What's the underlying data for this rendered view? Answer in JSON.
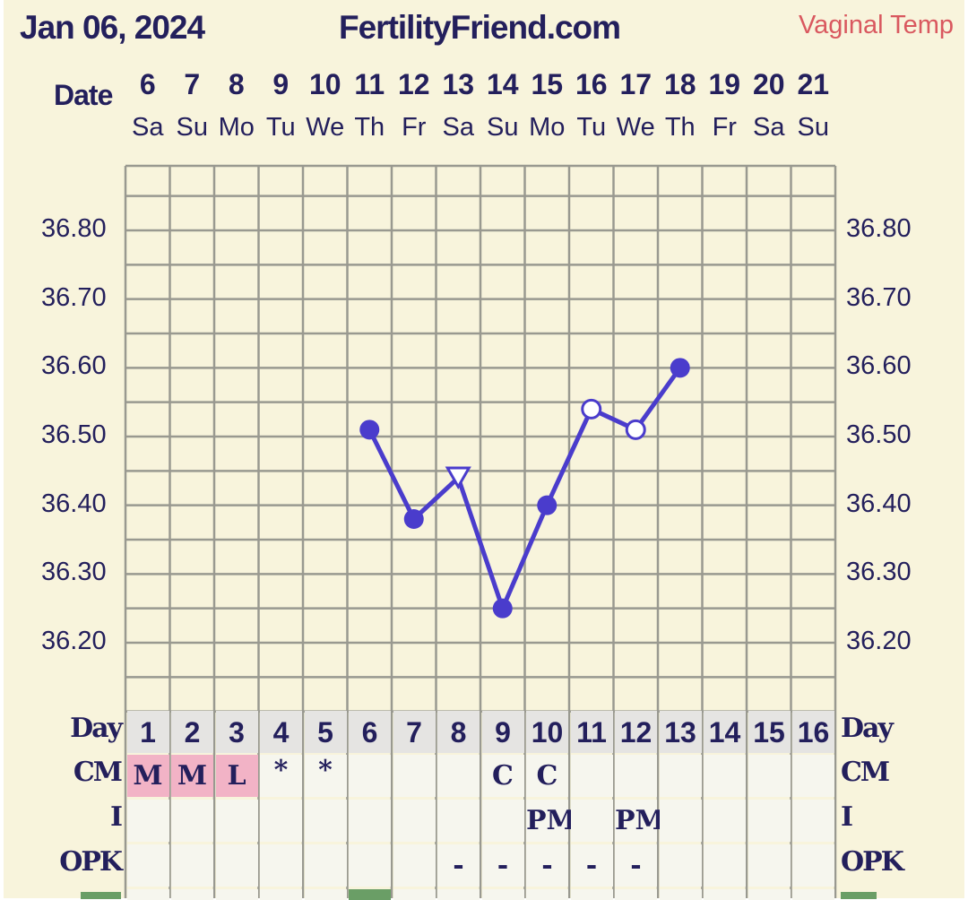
{
  "header": {
    "date": "Jan 06, 2024",
    "site": "FertilityFriend.com",
    "temp_type": "Vaginal Temp",
    "date_label": "Date"
  },
  "chart_data": {
    "type": "line",
    "dates": [
      "6",
      "7",
      "8",
      "9",
      "10",
      "11",
      "12",
      "13",
      "14",
      "15",
      "16",
      "17",
      "18",
      "19",
      "20",
      "21"
    ],
    "weekdays": [
      "Sa",
      "Su",
      "Mo",
      "Tu",
      "We",
      "Th",
      "Fr",
      "Sa",
      "Su",
      "Mo",
      "Tu",
      "We",
      "Th",
      "Fr",
      "Sa",
      "Su"
    ],
    "y_ticks": [
      "36.80",
      "36.70",
      "36.60",
      "36.50",
      "36.40",
      "36.30",
      "36.20"
    ],
    "ylim": [
      36.1,
      36.85
    ],
    "grid": true,
    "series": [
      {
        "color": "#4a3ccc",
        "points": [
          {
            "date": "11",
            "value": 36.51,
            "marker": "filled-circle"
          },
          {
            "date": "12",
            "value": 36.38,
            "marker": "filled-circle"
          },
          {
            "date": "13",
            "value": 36.44,
            "marker": "open-triangle"
          },
          {
            "date": "14",
            "value": 36.25,
            "marker": "filled-circle"
          },
          {
            "date": "15",
            "value": 36.4,
            "marker": "filled-circle"
          },
          {
            "date": "16",
            "value": 36.54,
            "marker": "open-circle"
          },
          {
            "date": "17",
            "value": 36.51,
            "marker": "open-circle"
          },
          {
            "date": "18",
            "value": 36.6,
            "marker": "filled-circle"
          }
        ]
      }
    ]
  },
  "table": {
    "day_label": "Day",
    "days": [
      "1",
      "2",
      "3",
      "4",
      "5",
      "6",
      "7",
      "8",
      "9",
      "10",
      "11",
      "12",
      "13",
      "14",
      "15",
      "16"
    ],
    "cm_label": "CM",
    "cm": [
      "M",
      "M",
      "L",
      "*",
      "*",
      "",
      "",
      "",
      "C",
      "C",
      "",
      "",
      "",
      "",
      "",
      ""
    ],
    "cm_highlight_color": "#f2b3c6",
    "i_label": "I",
    "i": [
      "",
      "",
      "",
      "",
      "",
      "",
      "",
      "",
      "",
      "PM",
      "",
      "PM",
      "",
      "",
      "",
      ""
    ],
    "opk_label": "OPK",
    "opk": [
      "",
      "",
      "",
      "",
      "",
      "",
      "",
      "-",
      "-",
      "-",
      "-",
      "-",
      "",
      "",
      "",
      ""
    ],
    "marker_color": "#6a9e66"
  }
}
